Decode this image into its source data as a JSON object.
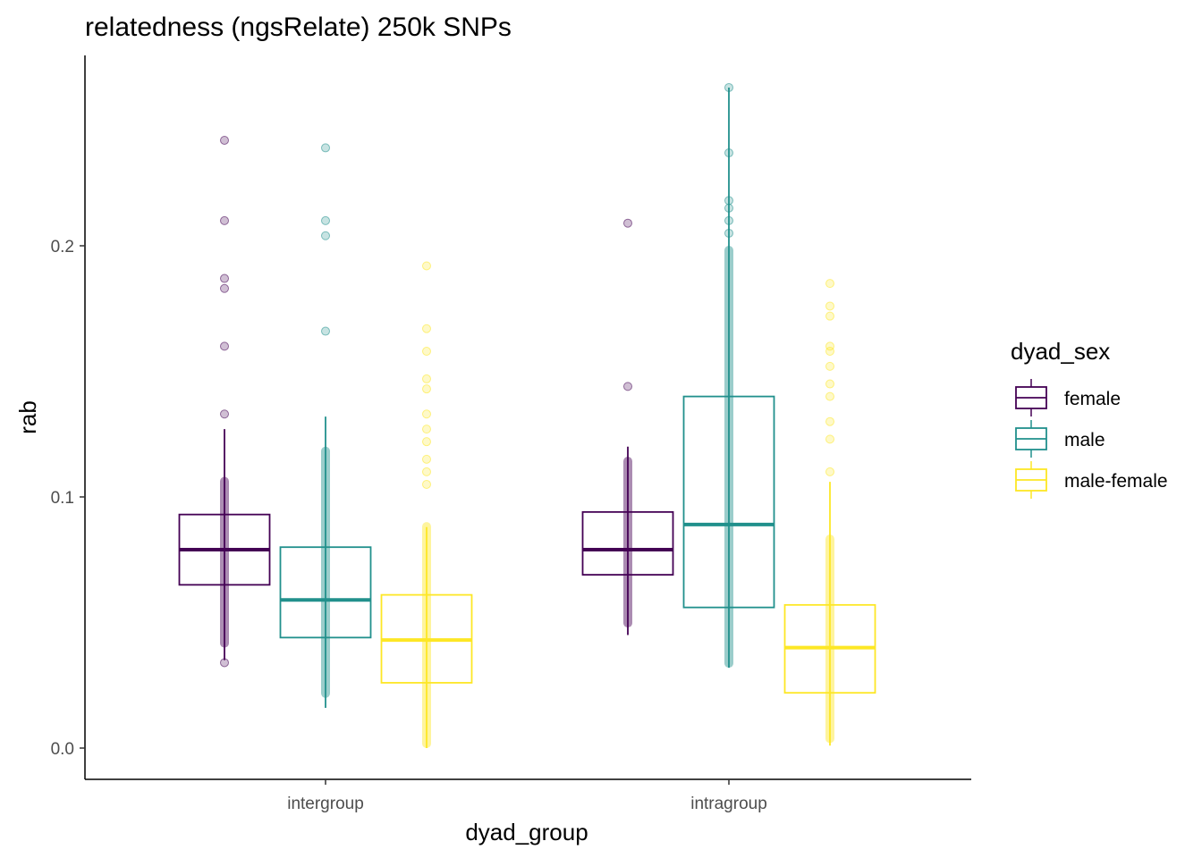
{
  "chart_data": {
    "type": "boxplot",
    "title": "relatedness (ngsRelate) 250k SNPs",
    "xlabel": "dyad_group",
    "ylabel": "rab",
    "ylim": [
      -0.012,
      0.277
    ],
    "yticks": [
      0.0,
      0.1,
      0.2
    ],
    "ytick_labels": [
      "0.0",
      "0.1",
      "0.2"
    ],
    "categories": [
      "intergroup",
      "intragroup"
    ],
    "grid": false,
    "legend": {
      "title": "dyad_sex",
      "position": "right",
      "entries": [
        "female",
        "male",
        "male-female"
      ]
    },
    "colors": {
      "female": "#440154",
      "male": "#21908C",
      "male-female": "#FDE725"
    },
    "series": [
      {
        "name": "female",
        "boxes": [
          {
            "group": "intergroup",
            "q1": 0.065,
            "median": 0.079,
            "q3": 0.093,
            "whisker_low": 0.035,
            "whisker_high": 0.127,
            "dense_range": [
              0.04,
              0.108
            ],
            "outliers": [
              0.034,
              0.133,
              0.16,
              0.183,
              0.187,
              0.21,
              0.242
            ]
          },
          {
            "group": "intragroup",
            "q1": 0.069,
            "median": 0.079,
            "q3": 0.094,
            "whisker_low": 0.045,
            "whisker_high": 0.12,
            "dense_range": [
              0.048,
              0.116
            ],
            "outliers": [
              0.144,
              0.209
            ]
          }
        ]
      },
      {
        "name": "male",
        "boxes": [
          {
            "group": "intergroup",
            "q1": 0.044,
            "median": 0.059,
            "q3": 0.08,
            "whisker_low": 0.016,
            "whisker_high": 0.132,
            "dense_range": [
              0.02,
              0.12
            ],
            "outliers": [
              0.166,
              0.204,
              0.21,
              0.239
            ]
          },
          {
            "group": "intragroup",
            "q1": 0.056,
            "median": 0.089,
            "q3": 0.14,
            "whisker_low": 0.032,
            "whisker_high": 0.263,
            "dense_range": [
              0.032,
              0.2
            ],
            "outliers": [
              0.205,
              0.21,
              0.215,
              0.218,
              0.237,
              0.263
            ]
          }
        ]
      },
      {
        "name": "male-female",
        "boxes": [
          {
            "group": "intergroup",
            "q1": 0.026,
            "median": 0.043,
            "q3": 0.061,
            "whisker_low": 0.0,
            "whisker_high": 0.088,
            "dense_range": [
              0.0,
              0.09
            ],
            "outliers": [
              0.105,
              0.11,
              0.115,
              0.122,
              0.127,
              0.133,
              0.143,
              0.147,
              0.158,
              0.167,
              0.192
            ]
          },
          {
            "group": "intragroup",
            "q1": 0.022,
            "median": 0.04,
            "q3": 0.057,
            "whisker_low": 0.001,
            "whisker_high": 0.106,
            "dense_range": [
              0.002,
              0.085
            ],
            "outliers": [
              0.11,
              0.123,
              0.13,
              0.14,
              0.145,
              0.152,
              0.158,
              0.16,
              0.172,
              0.176,
              0.185
            ]
          }
        ]
      }
    ]
  }
}
